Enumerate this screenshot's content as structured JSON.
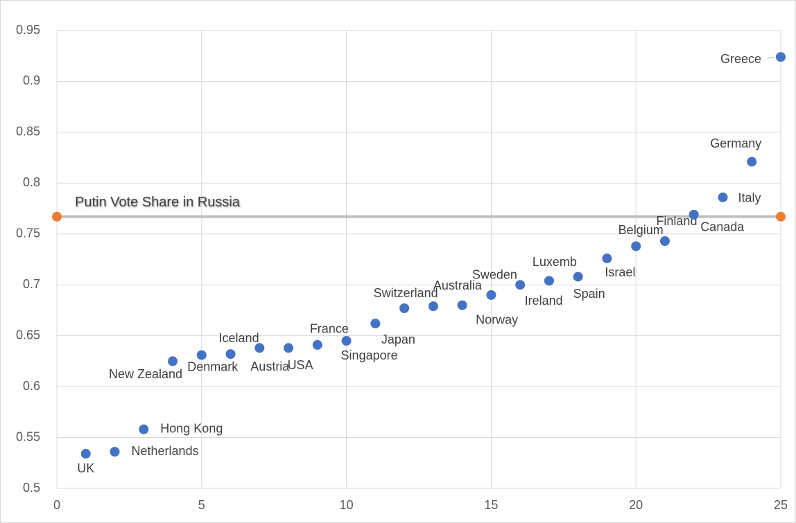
{
  "chart_data": {
    "type": "scatter",
    "x": [
      1,
      2,
      3,
      4,
      5,
      6,
      7,
      8,
      9,
      10,
      11,
      12,
      13,
      14,
      15,
      16,
      17,
      18,
      19,
      20,
      21,
      22,
      23,
      24,
      25
    ],
    "series": [
      {
        "color": "#4472c4",
        "values": [
          0.534,
          0.536,
          0.558,
          0.625,
          0.631,
          0.632,
          0.638,
          0.638,
          0.641,
          0.645,
          0.662,
          0.677,
          0.679,
          0.68,
          0.69,
          0.7,
          0.704,
          0.708,
          0.726,
          0.738,
          0.743,
          0.769,
          0.786,
          0.821,
          0.924
        ],
        "point_labels": [
          "UK",
          "Netherlands",
          "Hong Kong",
          "New Zealand",
          "Denmark",
          "Iceland",
          "Austria",
          "USA",
          "France",
          "Singapore",
          "Japan",
          "Switzerland",
          "Australia",
          "Norway",
          "Sweden",
          "Ireland",
          "Luxemb",
          "Spain",
          "Israel",
          "Belgium",
          "Finland",
          "Canada",
          "Italy",
          "Germany",
          "Greece"
        ]
      },
      {
        "name": "Putin Vote Share in Russia",
        "color": "#ed7d31",
        "line_color": "#bfbfbf",
        "x": [
          0,
          25
        ],
        "values": [
          0.767,
          0.767
        ]
      }
    ],
    "xlim": [
      0,
      25
    ],
    "xticks": [
      0,
      5,
      10,
      15,
      20,
      25
    ],
    "ylim": [
      0.5,
      0.95
    ],
    "yticks": [
      0.5,
      0.55,
      0.6,
      0.65,
      0.7,
      0.75,
      0.8,
      0.85,
      0.9,
      0.95
    ],
    "grid": true
  }
}
